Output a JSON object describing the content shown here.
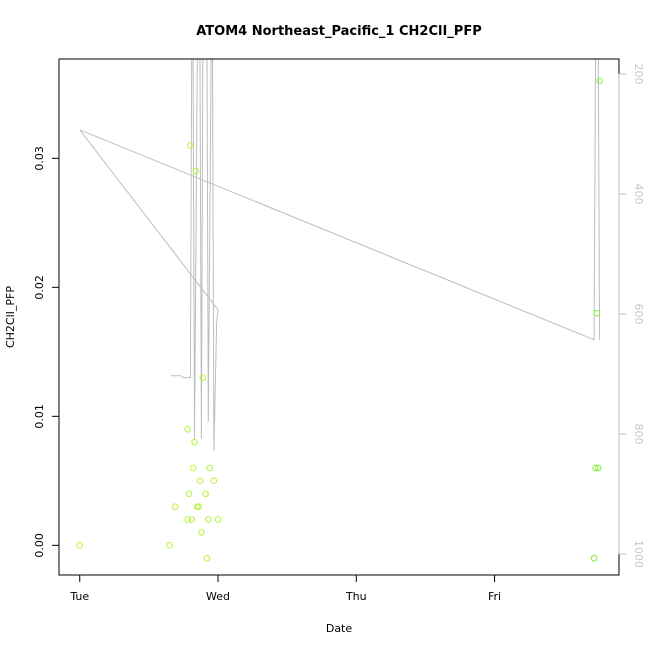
{
  "chart_data": {
    "type": "scatter",
    "title": "ATOM4 Northeast_Pacific_1 CH2ClI_PFP",
    "xlabel": "Date",
    "ylabel": "CH2ClI_PFP",
    "x_ticks": [
      {
        "label": "Tue",
        "day": 0
      },
      {
        "label": "Wed",
        "day": 1
      },
      {
        "label": "Thu",
        "day": 2
      },
      {
        "label": "Fri",
        "day": 3
      }
    ],
    "xlim_days": [
      -0.15,
      3.9
    ],
    "y_left": {
      "ylim": [
        -0.0023,
        0.0377
      ],
      "ticks": [
        0.0,
        0.01,
        0.02,
        0.03
      ],
      "tick_labels": [
        "0.00",
        "0.01",
        "0.02",
        "0.03"
      ]
    },
    "y_right": {
      "label": "",
      "reversed": true,
      "ylim": [
        1035,
        175
      ],
      "ticks": [
        200,
        400,
        600,
        800,
        1000
      ],
      "tick_labels": [
        "200",
        "400",
        "600",
        "800",
        "1000"
      ]
    },
    "colors": {
      "points": "#b8f53a",
      "points_late": "#84ee3a",
      "pressure_line": "#bdbdbd",
      "axis": "#000000",
      "right_axis": "#bdbdbd"
    },
    "series": [
      {
        "kind": "points",
        "axis": "left",
        "points": [
          {
            "day": 0.0,
            "value": 0.0
          },
          {
            "day": 0.65,
            "value": 0.0
          },
          {
            "day": 0.69,
            "value": 0.003
          },
          {
            "day": 0.78,
            "value": 0.009
          },
          {
            "day": 0.78,
            "value": 0.002
          },
          {
            "day": 0.79,
            "value": 0.004
          },
          {
            "day": 0.8,
            "value": 0.031
          },
          {
            "day": 0.81,
            "value": 0.002
          },
          {
            "day": 0.82,
            "value": 0.006
          },
          {
            "day": 0.83,
            "value": 0.008
          },
          {
            "day": 0.84,
            "value": 0.029
          },
          {
            "day": 0.85,
            "value": 0.003
          },
          {
            "day": 0.86,
            "value": 0.003
          },
          {
            "day": 0.87,
            "value": 0.005
          },
          {
            "day": 0.88,
            "value": 0.001
          },
          {
            "day": 0.89,
            "value": 0.013
          },
          {
            "day": 0.91,
            "value": 0.004
          },
          {
            "day": 0.92,
            "value": -0.001
          },
          {
            "day": 0.93,
            "value": 0.002
          },
          {
            "day": 0.94,
            "value": 0.006
          },
          {
            "day": 0.97,
            "value": 0.005
          },
          {
            "day": 1.0,
            "value": 0.002
          },
          {
            "day": 3.72,
            "value": -0.001
          },
          {
            "day": 3.73,
            "value": 0.006
          },
          {
            "day": 3.74,
            "value": 0.018
          },
          {
            "day": 3.75,
            "value": 0.006
          },
          {
            "day": 3.76,
            "value": 0.036
          }
        ]
      },
      {
        "kind": "line",
        "axis": "right",
        "points": [
          {
            "day": 0.0,
            "pressure": 293
          },
          {
            "day": 1.0,
            "pressure": 593
          },
          {
            "day": 0.99,
            "pressure": 616
          },
          {
            "day": 0.97,
            "pressure": 828
          },
          {
            "day": 0.96,
            "pressure": 175
          },
          {
            "day": 0.95,
            "pressure": 175
          },
          {
            "day": 0.93,
            "pressure": 780
          },
          {
            "day": 0.92,
            "pressure": 175
          },
          {
            "day": 0.89,
            "pressure": 175
          },
          {
            "day": 0.88,
            "pressure": 808
          },
          {
            "day": 0.87,
            "pressure": 175
          },
          {
            "day": 0.85,
            "pressure": 175
          },
          {
            "day": 0.83,
            "pressure": 808
          },
          {
            "day": 0.82,
            "pressure": 175
          },
          {
            "day": 0.81,
            "pressure": 175
          },
          {
            "day": 0.8,
            "pressure": 706
          },
          {
            "day": 0.75,
            "pressure": 706
          },
          {
            "day": 0.73,
            "pressure": 703
          },
          {
            "day": 0.66,
            "pressure": 703
          },
          {
            "day": 0.0,
            "pressure": 293,
            "break_before": true
          },
          {
            "day": 3.72,
            "pressure": 643
          },
          {
            "day": 3.73,
            "pressure": 175
          },
          {
            "day": 3.75,
            "pressure": 175
          },
          {
            "day": 3.76,
            "pressure": 643
          }
        ]
      }
    ]
  }
}
